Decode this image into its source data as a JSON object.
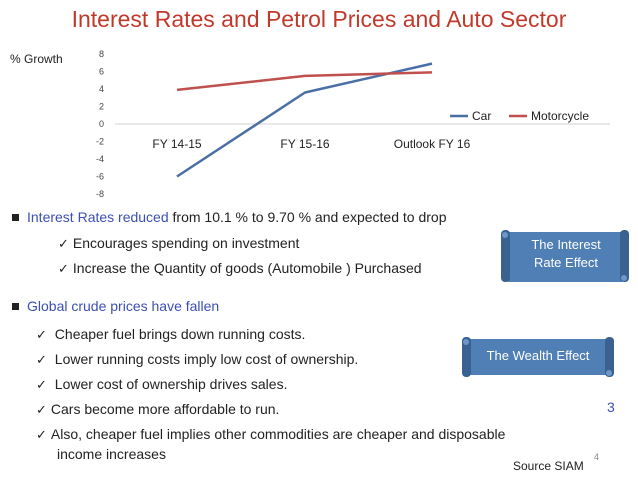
{
  "title": "Interest Rates and Petrol Prices and Auto Sector",
  "chart_data": {
    "type": "line",
    "ylabel": "% Growth",
    "categories": [
      "FY 14-15",
      "FY 15-16",
      "Outlook FY 16"
    ],
    "ylim": [
      -8,
      8
    ],
    "yticks": [
      "8",
      "6",
      "4",
      "2",
      "0",
      "-2",
      "-4",
      "-6",
      "-8"
    ],
    "series": [
      {
        "name": "Car",
        "values": [
          -6.0,
          3.6,
          6.9
        ],
        "color": "#4a6fa5"
      },
      {
        "name": "Motorcycle",
        "values": [
          3.9,
          5.5,
          5.9
        ],
        "color": "#c0504d"
      }
    ],
    "legend_position": "right"
  },
  "section1": {
    "heading_blue": "Interest Rates reduced",
    "heading_black": " from 10.1 % to 9.70 % and expected to drop",
    "items": [
      "Encourages spending on investment",
      "Increase the Quantity of goods (Automobile ) Purchased"
    ]
  },
  "section2": {
    "heading": "Global crude prices have fallen",
    "items": [
      "Cheaper fuel brings down running costs.",
      "Lower running costs imply low cost of ownership.",
      "Lower cost of ownership drives sales.",
      "Cars become more affordable to run.",
      "Also, cheaper fuel implies other commodities are cheaper and disposable",
      "income increases"
    ]
  },
  "callouts": {
    "interest_line1": "The Interest",
    "interest_line2": "Rate Effect",
    "wealth": "The Wealth Effect"
  },
  "marker": "3",
  "page_number": "4",
  "source": "Source SIAM",
  "colors": {
    "accent": "#c0392b",
    "blue_text": "#3b4fb5",
    "scroll_fill": "#4f7fb5",
    "scroll_dark": "#3a6291"
  }
}
